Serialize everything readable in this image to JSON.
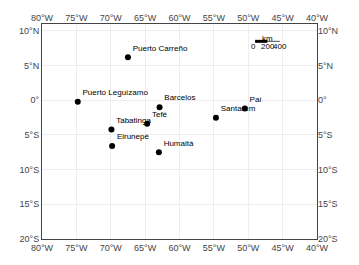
{
  "chart_data": {
    "type": "scatter",
    "x": [
      -67.5,
      -74.8,
      -62.9,
      -54.7,
      -50.5,
      -69.9,
      -64.7,
      -69.8,
      -63.0
    ],
    "values": [
      6.2,
      -0.2,
      -1.0,
      -2.5,
      -1.2,
      -4.2,
      -3.4,
      -6.6,
      -7.5
    ],
    "labels": [
      "Puerto Carreño",
      "Puerto Leguízamo",
      "Barcelos",
      "Santarém",
      "Paí",
      "Tabatinga",
      "Tefé",
      "Eirunepé",
      "Humaitá"
    ],
    "color": "#000000",
    "marker": "circle",
    "xlim": [
      -80,
      -40
    ],
    "ylim": [
      -20,
      11
    ],
    "xticks": [
      {
        "value": -80,
        "label": "80°W"
      },
      {
        "value": -75,
        "label": "75°W"
      },
      {
        "value": -70,
        "label": "70°W"
      },
      {
        "value": -65,
        "label": "65°W"
      },
      {
        "value": -60,
        "label": "60°W"
      },
      {
        "value": -55,
        "label": "55°W"
      },
      {
        "value": -50,
        "label": "50°W"
      },
      {
        "value": -45,
        "label": "45°W"
      },
      {
        "value": -40,
        "label": "40°W"
      }
    ],
    "yticks": [
      {
        "value": -20,
        "label": "20°S"
      },
      {
        "value": -15,
        "label": "15°S"
      },
      {
        "value": -10,
        "label": "10°S"
      },
      {
        "value": -5,
        "label": "5°S"
      },
      {
        "value": 0,
        "label": "0°"
      },
      {
        "value": 5,
        "label": "5°N"
      },
      {
        "value": 10,
        "label": "10°N"
      }
    ],
    "grid": true,
    "scalebar": {
      "y": 8.5,
      "x": [
        -49.0,
        -47.198198,
        -45.396396
      ]
    },
    "annotations": [
      {
        "text": "0",
        "x": -49.2,
        "y": 7.7
      },
      {
        "text": "200",
        "x": -47.198198,
        "y": 7.7
      },
      {
        "text": "400",
        "x": -45.396396,
        "y": 7.7
      },
      {
        "text": "km",
        "x": -47.198198,
        "y": 8.9
      }
    ]
  }
}
